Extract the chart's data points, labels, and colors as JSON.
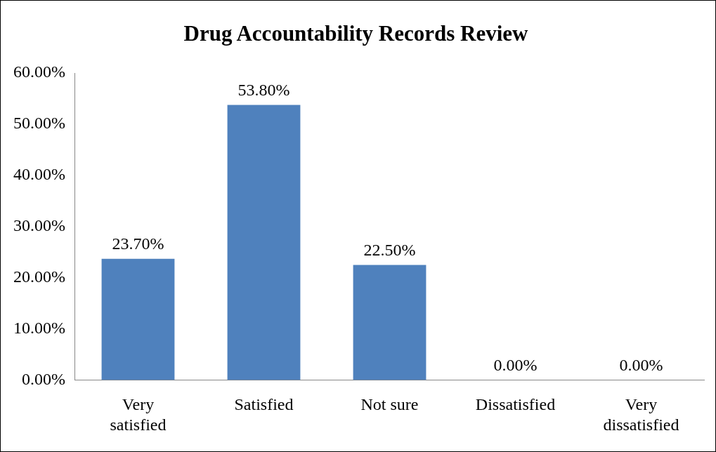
{
  "chart_data": {
    "type": "bar",
    "title": "Drug Accountability Records Review",
    "categories": [
      "Very satisfied",
      "Satisfied",
      "Not sure",
      "Dissatisfied",
      "Very dissatisfied"
    ],
    "values": [
      23.7,
      53.8,
      22.5,
      0,
      0
    ],
    "value_labels": [
      "23.70%",
      "53.80%",
      "22.50%",
      "0.00%",
      "0.00%"
    ],
    "color": "#4f81bd",
    "ylim": [
      0,
      60
    ],
    "yticks": [
      {
        "value": 0,
        "label": "0.00%"
      },
      {
        "value": 10,
        "label": "10.00%"
      },
      {
        "value": 20,
        "label": "20.00%"
      },
      {
        "value": 30,
        "label": "30.00%"
      },
      {
        "value": 40,
        "label": "40.00%"
      },
      {
        "value": 50,
        "label": "50.00%"
      },
      {
        "value": 60,
        "label": "60.00%"
      }
    ],
    "grid": false,
    "legend": false
  }
}
